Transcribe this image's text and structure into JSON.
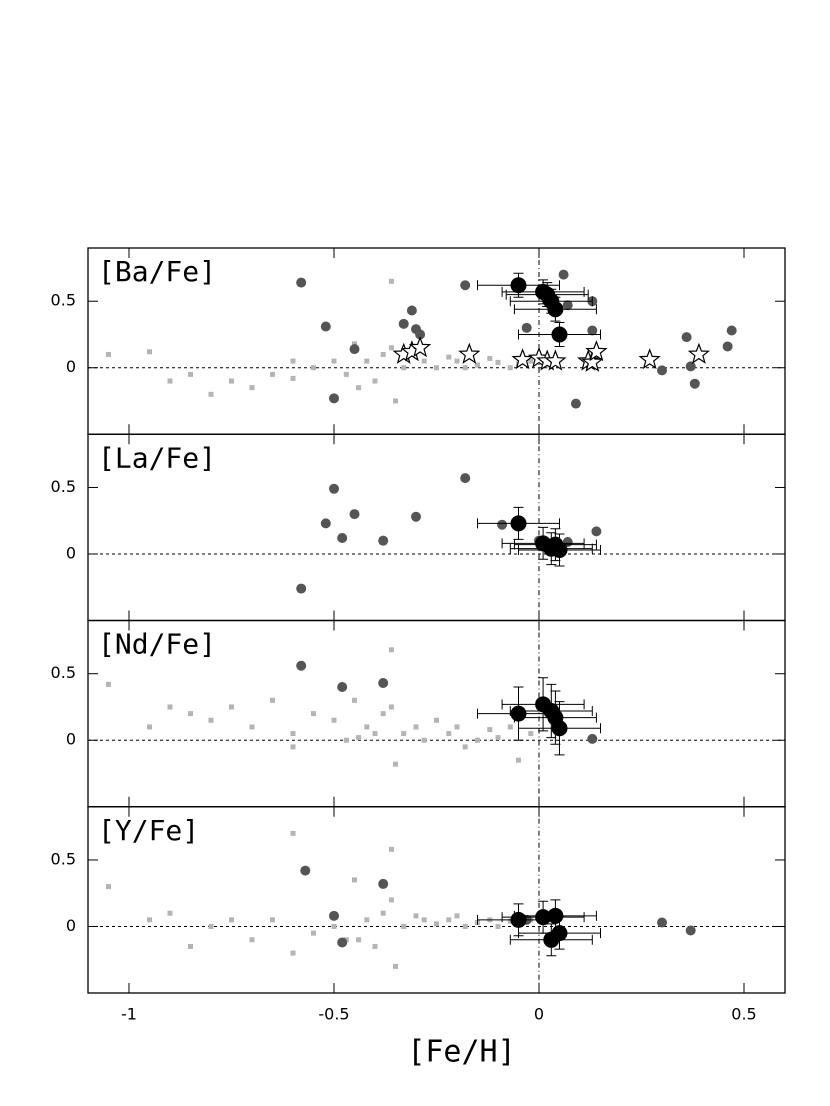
{
  "chart_data": [
    {
      "type": "scatter",
      "title": "[Ba/Fe]",
      "xlim": [
        -1.1,
        0.6
      ],
      "ylim": [
        -0.5,
        0.9
      ],
      "xticks": [
        -1,
        -0.5,
        0,
        0.5
      ],
      "yticks": [
        0,
        0.5
      ],
      "hline": 0,
      "vline": 0,
      "series": [
        {
          "marker": "dot",
          "color": "#b4b4b4",
          "x": [
            -1.05,
            -0.95,
            -0.9,
            -0.85,
            -0.8,
            -0.75,
            -0.7,
            -0.65,
            -0.6,
            -0.55,
            -0.5,
            -0.47,
            -0.45,
            -0.42,
            -0.4,
            -0.38,
            -0.36,
            -0.35,
            -0.33,
            -0.3,
            -0.28,
            -0.25,
            -0.22,
            -0.2,
            -0.18,
            -0.15,
            -0.12,
            -0.1,
            -0.07,
            -0.05,
            -0.02,
            0.02,
            -0.36,
            -0.44,
            -0.6
          ],
          "values": [
            0.1,
            0.12,
            -0.1,
            -0.05,
            -0.2,
            -0.1,
            -0.15,
            -0.05,
            -0.08,
            0.0,
            0.05,
            -0.05,
            0.18,
            0.05,
            -0.1,
            0.1,
            0.65,
            -0.25,
            0.0,
            0.12,
            0.05,
            0.0,
            0.08,
            0.05,
            0.0,
            0.02,
            0.07,
            0.04,
            0.0,
            0.03,
            0.05,
            0.02,
            0.15,
            -0.15,
            0.05
          ]
        },
        {
          "marker": "circle",
          "color": "#555555",
          "x": [
            -0.58,
            -0.52,
            -0.45,
            -0.5,
            -0.33,
            -0.31,
            -0.3,
            -0.29,
            -0.18,
            -0.03,
            0.06,
            0.07,
            0.13,
            0.13,
            0.09,
            0.36,
            0.37,
            0.38,
            0.46,
            0.47,
            0.3
          ],
          "values": [
            0.64,
            0.31,
            0.14,
            -0.23,
            0.33,
            0.43,
            0.29,
            0.25,
            0.62,
            0.3,
            0.7,
            0.47,
            0.5,
            0.28,
            -0.27,
            0.23,
            0.01,
            -0.12,
            0.16,
            0.28,
            -0.02
          ]
        },
        {
          "marker": "big",
          "color": "#000000",
          "xerr": 0.1,
          "yerr": 0.09,
          "x": [
            -0.05,
            0.01,
            0.02,
            0.03,
            0.04,
            0.05
          ],
          "values": [
            0.62,
            0.57,
            0.55,
            0.5,
            0.44,
            0.25
          ]
        },
        {
          "marker": "star",
          "color": "#000000",
          "x": [
            -0.33,
            -0.31,
            -0.29,
            -0.17,
            -0.04,
            0.0,
            0.02,
            0.04,
            0.12,
            0.13,
            0.14,
            0.27,
            0.39
          ],
          "values": [
            0.1,
            0.12,
            0.15,
            0.1,
            0.06,
            0.07,
            0.05,
            0.05,
            0.05,
            0.04,
            0.12,
            0.06,
            0.1
          ]
        }
      ]
    },
    {
      "type": "scatter",
      "title": "[La/Fe]",
      "xlim": [
        -1.1,
        0.6
      ],
      "ylim": [
        -0.5,
        0.9
      ],
      "xticks": [
        -1,
        -0.5,
        0,
        0.5
      ],
      "yticks": [
        0,
        0.5
      ],
      "hline": 0,
      "vline": 0,
      "series": [
        {
          "marker": "circle",
          "color": "#555555",
          "x": [
            -0.58,
            -0.52,
            -0.5,
            -0.48,
            -0.45,
            -0.38,
            -0.3,
            -0.18,
            -0.09,
            0.0,
            0.07,
            0.14
          ],
          "values": [
            -0.26,
            0.23,
            0.49,
            0.12,
            0.3,
            0.1,
            0.28,
            0.57,
            0.22,
            0.1,
            0.09,
            0.17
          ]
        },
        {
          "marker": "big",
          "color": "#000000",
          "xerr": 0.1,
          "yerr": 0.12,
          "x": [
            -0.05,
            0.01,
            0.03,
            0.04,
            0.05
          ],
          "values": [
            0.23,
            0.08,
            0.04,
            0.07,
            0.03
          ]
        }
      ]
    },
    {
      "type": "scatter",
      "title": "[Nd/Fe]",
      "xlim": [
        -1.1,
        0.6
      ],
      "ylim": [
        -0.5,
        0.9
      ],
      "xticks": [
        -1,
        -0.5,
        0,
        0.5
      ],
      "yticks": [
        0,
        0.5
      ],
      "hline": 0,
      "vline": 0,
      "series": [
        {
          "marker": "dot",
          "color": "#b4b4b4",
          "x": [
            -1.05,
            -0.95,
            -0.9,
            -0.85,
            -0.8,
            -0.75,
            -0.7,
            -0.65,
            -0.6,
            -0.55,
            -0.5,
            -0.47,
            -0.45,
            -0.42,
            -0.4,
            -0.38,
            -0.36,
            -0.35,
            -0.33,
            -0.3,
            -0.28,
            -0.25,
            -0.22,
            -0.2,
            -0.18,
            -0.15,
            -0.12,
            -0.1,
            -0.07,
            -0.05,
            -0.02,
            0.02,
            -0.36,
            -0.44,
            -0.6
          ],
          "values": [
            0.42,
            0.1,
            0.25,
            0.2,
            0.15,
            0.25,
            0.1,
            0.3,
            0.05,
            0.2,
            0.15,
            0.0,
            0.3,
            0.1,
            0.05,
            0.2,
            0.68,
            -0.18,
            0.05,
            0.1,
            0.0,
            0.15,
            0.05,
            0.1,
            -0.05,
            0.0,
            0.08,
            0.02,
            0.1,
            -0.15,
            0.05,
            0.2,
            0.25,
            0.02,
            -0.05
          ]
        },
        {
          "marker": "circle",
          "color": "#555555",
          "x": [
            -0.58,
            -0.48,
            -0.38,
            0.13
          ],
          "values": [
            0.56,
            0.4,
            0.43,
            0.01
          ]
        },
        {
          "marker": "big",
          "color": "#000000",
          "xerr": 0.1,
          "yerr": 0.2,
          "x": [
            -0.05,
            0.01,
            0.03,
            0.04,
            0.05
          ],
          "values": [
            0.2,
            0.27,
            0.22,
            0.17,
            0.09
          ]
        }
      ]
    },
    {
      "type": "scatter",
      "title": "[Y/Fe]",
      "xlabel": "[Fe/H]",
      "xlim": [
        -1.1,
        0.6
      ],
      "ylim": [
        -0.5,
        0.9
      ],
      "xticks": [
        -1,
        -0.5,
        0,
        0.5
      ],
      "yticks": [
        0,
        0.5
      ],
      "hline": 0,
      "vline": 0,
      "series": [
        {
          "marker": "dot",
          "color": "#b4b4b4",
          "x": [
            -1.05,
            -0.95,
            -0.9,
            -0.85,
            -0.8,
            -0.75,
            -0.7,
            -0.65,
            -0.6,
            -0.55,
            -0.5,
            -0.47,
            -0.45,
            -0.42,
            -0.4,
            -0.38,
            -0.36,
            -0.35,
            -0.33,
            -0.3,
            -0.28,
            -0.25,
            -0.22,
            -0.2,
            -0.18,
            -0.15,
            -0.12,
            -0.1,
            -0.07,
            -0.05,
            -0.02,
            0.02,
            -0.36,
            -0.44,
            -0.6
          ],
          "values": [
            0.3,
            0.05,
            0.1,
            -0.15,
            0.0,
            0.05,
            -0.1,
            0.05,
            -0.2,
            -0.05,
            0.0,
            -0.1,
            0.35,
            0.05,
            -0.15,
            0.1,
            0.58,
            -0.3,
            0.0,
            0.08,
            0.05,
            0.02,
            0.05,
            0.08,
            0.0,
            0.03,
            0.05,
            0.0,
            0.04,
            0.02,
            0.05,
            0.05,
            0.2,
            -0.1,
            0.7
          ]
        },
        {
          "marker": "circle",
          "color": "#555555",
          "x": [
            -0.57,
            -0.5,
            -0.48,
            -0.38,
            -0.03,
            0.3,
            0.37
          ],
          "values": [
            0.42,
            0.08,
            -0.12,
            0.32,
            0.05,
            0.03,
            -0.03
          ]
        },
        {
          "marker": "big",
          "color": "#000000",
          "xerr": 0.1,
          "yerr": 0.12,
          "x": [
            -0.05,
            0.01,
            0.03,
            0.04,
            0.05
          ],
          "values": [
            0.05,
            0.07,
            -0.1,
            0.08,
            -0.05
          ]
        }
      ]
    }
  ]
}
